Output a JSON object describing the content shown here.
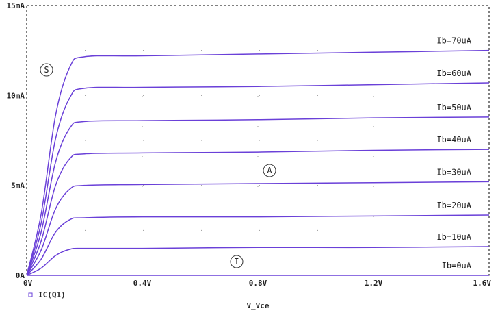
{
  "chart_data": {
    "type": "line",
    "xlabel": "V_Vce",
    "ylabel": "",
    "xlim": [
      0,
      1.6
    ],
    "ylim": [
      0,
      15
    ],
    "x_ticks": [
      "0V",
      "0.4V",
      "0.8V",
      "1.2V",
      "1.6V"
    ],
    "y_ticks": [
      "0A",
      "5mA",
      "10mA",
      "15mA"
    ],
    "grid": "dotted",
    "legend": {
      "entry": "IC(Q1)",
      "placement": "bottom-left",
      "marker": "square"
    },
    "line_color": "#6a40d8",
    "markers": [
      "S",
      "A",
      "I"
    ],
    "series": [
      {
        "name": "Ib=0uA",
        "x": [
          0,
          0.1,
          0.2,
          0.4,
          0.8,
          1.2,
          1.6
        ],
        "y": [
          0,
          0,
          0,
          0,
          0,
          0,
          0
        ]
      },
      {
        "name": "Ib=10uA",
        "x": [
          0,
          0.05,
          0.1,
          0.15,
          0.2,
          0.4,
          0.8,
          1.2,
          1.6
        ],
        "y": [
          0,
          0.4,
          1.1,
          1.45,
          1.5,
          1.5,
          1.55,
          1.55,
          1.6
        ]
      },
      {
        "name": "Ib=20uA",
        "x": [
          0,
          0.05,
          0.1,
          0.15,
          0.2,
          0.4,
          0.8,
          1.2,
          1.6
        ],
        "y": [
          0,
          0.9,
          2.4,
          3.1,
          3.2,
          3.25,
          3.25,
          3.3,
          3.35
        ]
      },
      {
        "name": "Ib=30uA",
        "x": [
          0,
          0.05,
          0.1,
          0.15,
          0.2,
          0.4,
          0.8,
          1.2,
          1.6
        ],
        "y": [
          0,
          1.4,
          3.7,
          4.8,
          5.0,
          5.05,
          5.1,
          5.15,
          5.2
        ]
      },
      {
        "name": "Ib=40uA",
        "x": [
          0,
          0.05,
          0.1,
          0.15,
          0.2,
          0.4,
          0.8,
          1.2,
          1.6
        ],
        "y": [
          0,
          1.9,
          5.0,
          6.5,
          6.75,
          6.8,
          6.85,
          6.95,
          7.0
        ]
      },
      {
        "name": "Ib=50uA",
        "x": [
          0,
          0.05,
          0.1,
          0.15,
          0.2,
          0.4,
          0.8,
          1.2,
          1.6
        ],
        "y": [
          0,
          2.4,
          6.3,
          8.2,
          8.55,
          8.6,
          8.65,
          8.75,
          8.8
        ]
      },
      {
        "name": "Ib=60uA",
        "x": [
          0,
          0.05,
          0.1,
          0.15,
          0.2,
          0.4,
          0.8,
          1.2,
          1.6
        ],
        "y": [
          0,
          2.9,
          7.6,
          9.9,
          10.4,
          10.45,
          10.5,
          10.6,
          10.7
        ]
      },
      {
        "name": "Ib=70uA",
        "x": [
          0,
          0.05,
          0.1,
          0.15,
          0.2,
          0.4,
          0.8,
          1.2,
          1.6
        ],
        "y": [
          0,
          3.4,
          8.9,
          11.6,
          12.15,
          12.2,
          12.3,
          12.4,
          12.5
        ]
      }
    ]
  }
}
